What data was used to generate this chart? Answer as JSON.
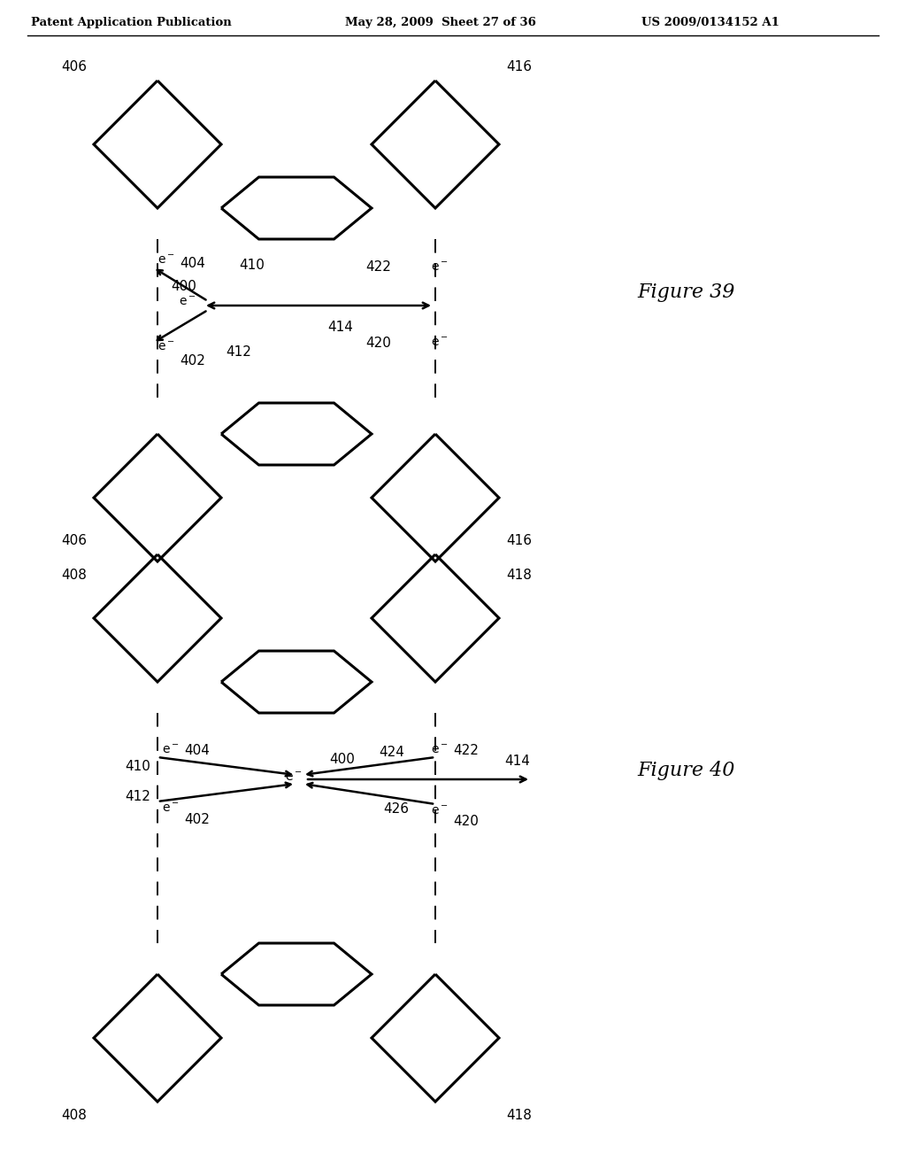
{
  "header_left": "Patent Application Publication",
  "header_mid": "May 28, 2009  Sheet 27 of 36",
  "header_right": "US 2009/0134152 A1",
  "bg_color": "#ffffff",
  "fig1_title": "Figure 39",
  "fig2_title": "Figure 40"
}
